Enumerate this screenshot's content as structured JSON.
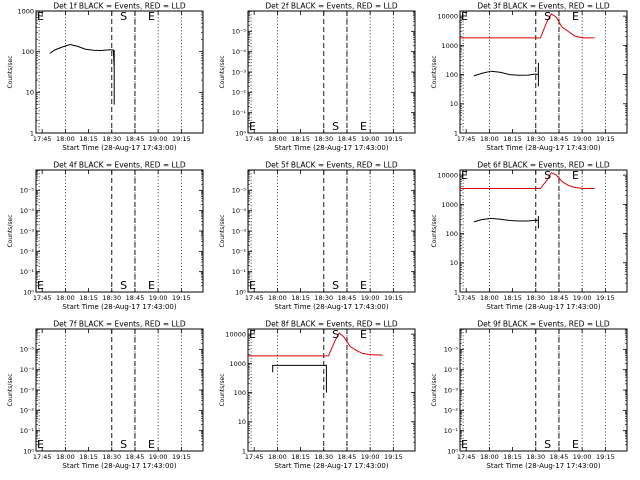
{
  "chart_data": [
    {
      "type": "line",
      "title": "Det 1f BLACK = Events, RED = LLD",
      "ylabel": "Counts/sec",
      "xlabel": "Start Time (28-Aug-17 17:43:00)",
      "x_ticks": [
        "17:45",
        "18:00",
        "18:15",
        "18:30",
        "18:45",
        "19:00",
        "19:15"
      ],
      "y_ticks": [
        "1",
        "10",
        "100",
        "1000"
      ],
      "ylim": [
        1,
        1000
      ],
      "markers": [
        {
          "label": "E",
          "t": 0
        },
        {
          "label": "S",
          "t": 55
        },
        {
          "label": "E",
          "t": 73
        }
      ],
      "series": [
        {
          "name": "Events",
          "color": "#000000",
          "points": [
            [
              7,
              90
            ],
            [
              10,
              110
            ],
            [
              15,
              130
            ],
            [
              20,
              150
            ],
            [
              25,
              135
            ],
            [
              30,
              115
            ],
            [
              35,
              108
            ],
            [
              40,
              107
            ],
            [
              46,
              112
            ],
            [
              48,
              110
            ],
            [
              48.6,
              40
            ],
            [
              48.6,
              5
            ],
            [
              48.6,
              110
            ]
          ]
        }
      ]
    },
    {
      "type": "line",
      "title": "Det 2f BLACK = Events, RED = LLD",
      "ylabel": "Counts/sec",
      "xlabel": "Start Time (28-Aug-17 17:43:00)",
      "x_ticks": [
        "17:45",
        "18:00",
        "18:15",
        "18:30",
        "18:45",
        "19:00",
        "19:15"
      ],
      "y_ticks": [
        "10⁰",
        "10⁻¹",
        "10⁻²",
        "10⁻³",
        "10⁻⁴",
        "10⁻⁵"
      ],
      "ylim": [
        1,
        1000000
      ],
      "markers": [
        {
          "label": "E",
          "t": 0
        },
        {
          "label": "S",
          "t": 55
        },
        {
          "label": "E",
          "t": 73
        }
      ],
      "series": []
    },
    {
      "type": "line",
      "title": "Det 3f BLACK = Events, RED = LLD",
      "ylabel": "Counts/sec",
      "xlabel": "Start Time (28-Aug-17 17:43:00)",
      "x_ticks": [
        "17:45",
        "18:00",
        "18:15",
        "18:30",
        "18:45",
        "19:00",
        "19:15"
      ],
      "y_ticks": [
        "1",
        "10",
        "100",
        "1000",
        "10000"
      ],
      "ylim": [
        1,
        15000
      ],
      "markers": [
        {
          "label": "E",
          "t": 0
        },
        {
          "label": "S",
          "t": 55
        },
        {
          "label": "E",
          "t": 73
        }
      ],
      "series": [
        {
          "name": "LLD",
          "color": "#dd0000",
          "points": [
            [
              -2,
              1800
            ],
            [
              46,
              1800
            ],
            [
              50,
              1800
            ],
            [
              54,
              6000
            ],
            [
              57,
              12000
            ],
            [
              60,
              9500
            ],
            [
              64,
              4200
            ],
            [
              68,
              3000
            ],
            [
              72,
              2100
            ],
            [
              77,
              1800
            ],
            [
              85,
              1800
            ]
          ]
        },
        {
          "name": "Events",
          "color": "#000000",
          "points": [
            [
              7,
              90
            ],
            [
              12,
              110
            ],
            [
              18,
              130
            ],
            [
              24,
              120
            ],
            [
              30,
              100
            ],
            [
              36,
              95
            ],
            [
              42,
              96
            ],
            [
              47,
              105
            ],
            [
              48.7,
              100
            ],
            [
              48.7,
              40
            ],
            [
              48.7,
              250
            ],
            [
              48.7,
              100
            ]
          ]
        }
      ]
    },
    {
      "type": "line",
      "title": "Det 4f BLACK = Events, RED = LLD",
      "ylabel": "Counts/sec",
      "xlabel": "Start Time (28-Aug-17 17:43:00)",
      "x_ticks": [
        "17:45",
        "18:00",
        "18:15",
        "18:30",
        "18:45",
        "19:00",
        "19:15"
      ],
      "y_ticks": [
        "10⁰",
        "10⁻¹",
        "10⁻²",
        "10⁻³",
        "10⁻⁴",
        "10⁻⁵"
      ],
      "ylim": [
        1,
        1000000
      ],
      "markers": [
        {
          "label": "E",
          "t": 0
        },
        {
          "label": "S",
          "t": 55
        },
        {
          "label": "E",
          "t": 73
        }
      ],
      "series": []
    },
    {
      "type": "line",
      "title": "Det 5f BLACK = Events, RED = LLD",
      "ylabel": "Counts/sec",
      "xlabel": "Start Time (28-Aug-17 17:43:00)",
      "x_ticks": [
        "17:45",
        "18:00",
        "18:15",
        "18:30",
        "18:45",
        "19:00",
        "19:15"
      ],
      "y_ticks": [
        "10⁰",
        "10⁻¹",
        "10⁻²",
        "10⁻³",
        "10⁻⁴",
        "10⁻⁵"
      ],
      "ylim": [
        1,
        1000000
      ],
      "markers": [
        {
          "label": "E",
          "t": 0
        },
        {
          "label": "S",
          "t": 55
        },
        {
          "label": "E",
          "t": 73
        }
      ],
      "series": []
    },
    {
      "type": "line",
      "title": "Det 6f BLACK = Events, RED = LLD",
      "ylabel": "Counts/sec",
      "xlabel": "Start Time (28-Aug-17 17:43:00)",
      "x_ticks": [
        "17:45",
        "18:00",
        "18:15",
        "18:30",
        "18:45",
        "19:00",
        "19:15"
      ],
      "y_ticks": [
        "1",
        "10",
        "100",
        "1000",
        "10000"
      ],
      "ylim": [
        1,
        15000
      ],
      "markers": [
        {
          "label": "E",
          "t": 0
        },
        {
          "label": "S",
          "t": 55
        },
        {
          "label": "E",
          "t": 73
        }
      ],
      "series": [
        {
          "name": "LLD",
          "color": "#dd0000",
          "points": [
            [
              -2,
              3500
            ],
            [
              46,
              3500
            ],
            [
              50,
              3500
            ],
            [
              54,
              6500
            ],
            [
              57,
              12000
            ],
            [
              60,
              10500
            ],
            [
              64,
              6000
            ],
            [
              68,
              4500
            ],
            [
              72,
              3800
            ],
            [
              77,
              3500
            ],
            [
              85,
              3500
            ]
          ]
        },
        {
          "name": "Events",
          "color": "#000000",
          "points": [
            [
              7,
              250
            ],
            [
              12,
              300
            ],
            [
              18,
              330
            ],
            [
              24,
              310
            ],
            [
              30,
              280
            ],
            [
              36,
              270
            ],
            [
              42,
              270
            ],
            [
              47,
              290
            ],
            [
              48.7,
              280
            ],
            [
              48.7,
              150
            ],
            [
              48.7,
              400
            ],
            [
              48.7,
              280
            ]
          ]
        }
      ]
    },
    {
      "type": "line",
      "title": "Det 7f BLACK = Events, RED = LLD",
      "ylabel": "Counts/sec",
      "xlabel": "Start Time (28-Aug-17 17:43:00)",
      "x_ticks": [
        "17:45",
        "18:00",
        "18:15",
        "18:30",
        "18:45",
        "19:00",
        "19:15"
      ],
      "y_ticks": [
        "10⁰",
        "10⁻¹",
        "10⁻²",
        "10⁻³",
        "10⁻⁴",
        "10⁻⁵"
      ],
      "ylim": [
        1,
        1000000
      ],
      "markers": [
        {
          "label": "E",
          "t": 0
        },
        {
          "label": "S",
          "t": 55
        },
        {
          "label": "E",
          "t": 73
        }
      ],
      "series": []
    },
    {
      "type": "line",
      "title": "Det 8f BLACK = Events, RED = LLD",
      "ylabel": "Counts/sec",
      "xlabel": "Start Time (28-Aug-17 17:43:00)",
      "x_ticks": [
        "17:45",
        "18:00",
        "18:15",
        "18:30",
        "18:45",
        "19:00",
        "19:15"
      ],
      "y_ticks": [
        "1",
        "10",
        "100",
        "1000",
        "10000"
      ],
      "ylim": [
        1,
        15000
      ],
      "markers": [
        {
          "label": "E",
          "t": 0
        },
        {
          "label": "S",
          "t": 55
        },
        {
          "label": "E",
          "t": 73
        }
      ],
      "series": [
        {
          "name": "LLD",
          "color": "#dd0000",
          "points": [
            [
              -2,
              1800
            ],
            [
              46,
              1800
            ],
            [
              50,
              1800
            ],
            [
              54,
              5500
            ],
            [
              57,
              11000
            ],
            [
              60,
              8000
            ],
            [
              64,
              3800
            ],
            [
              68,
              2800
            ],
            [
              72,
              2200
            ],
            [
              77,
              2000
            ],
            [
              85,
              1900
            ]
          ]
        },
        {
          "name": "Events",
          "color": "#000000",
          "points": [
            [
              14,
              500
            ],
            [
              14,
              850
            ],
            [
              48.7,
              850
            ],
            [
              48.7,
              100
            ],
            [
              48.7,
              900
            ]
          ]
        }
      ]
    },
    {
      "type": "line",
      "title": "Det 9f BLACK = Events, RED = LLD",
      "ylabel": "Counts/sec",
      "xlabel": "Start Time (28-Aug-17 17:43:00)",
      "x_ticks": [
        "17:45",
        "18:00",
        "18:15",
        "18:30",
        "18:45",
        "19:00",
        "19:15"
      ],
      "y_ticks": [
        "10⁰",
        "10⁻¹",
        "10⁻²",
        "10⁻³",
        "10⁻⁴",
        "10⁻⁵"
      ],
      "ylim": [
        1,
        1000000
      ],
      "markers": [
        {
          "label": "E",
          "t": 0
        },
        {
          "label": "S",
          "t": 55
        },
        {
          "label": "E",
          "t": 73
        }
      ],
      "series": []
    }
  ]
}
